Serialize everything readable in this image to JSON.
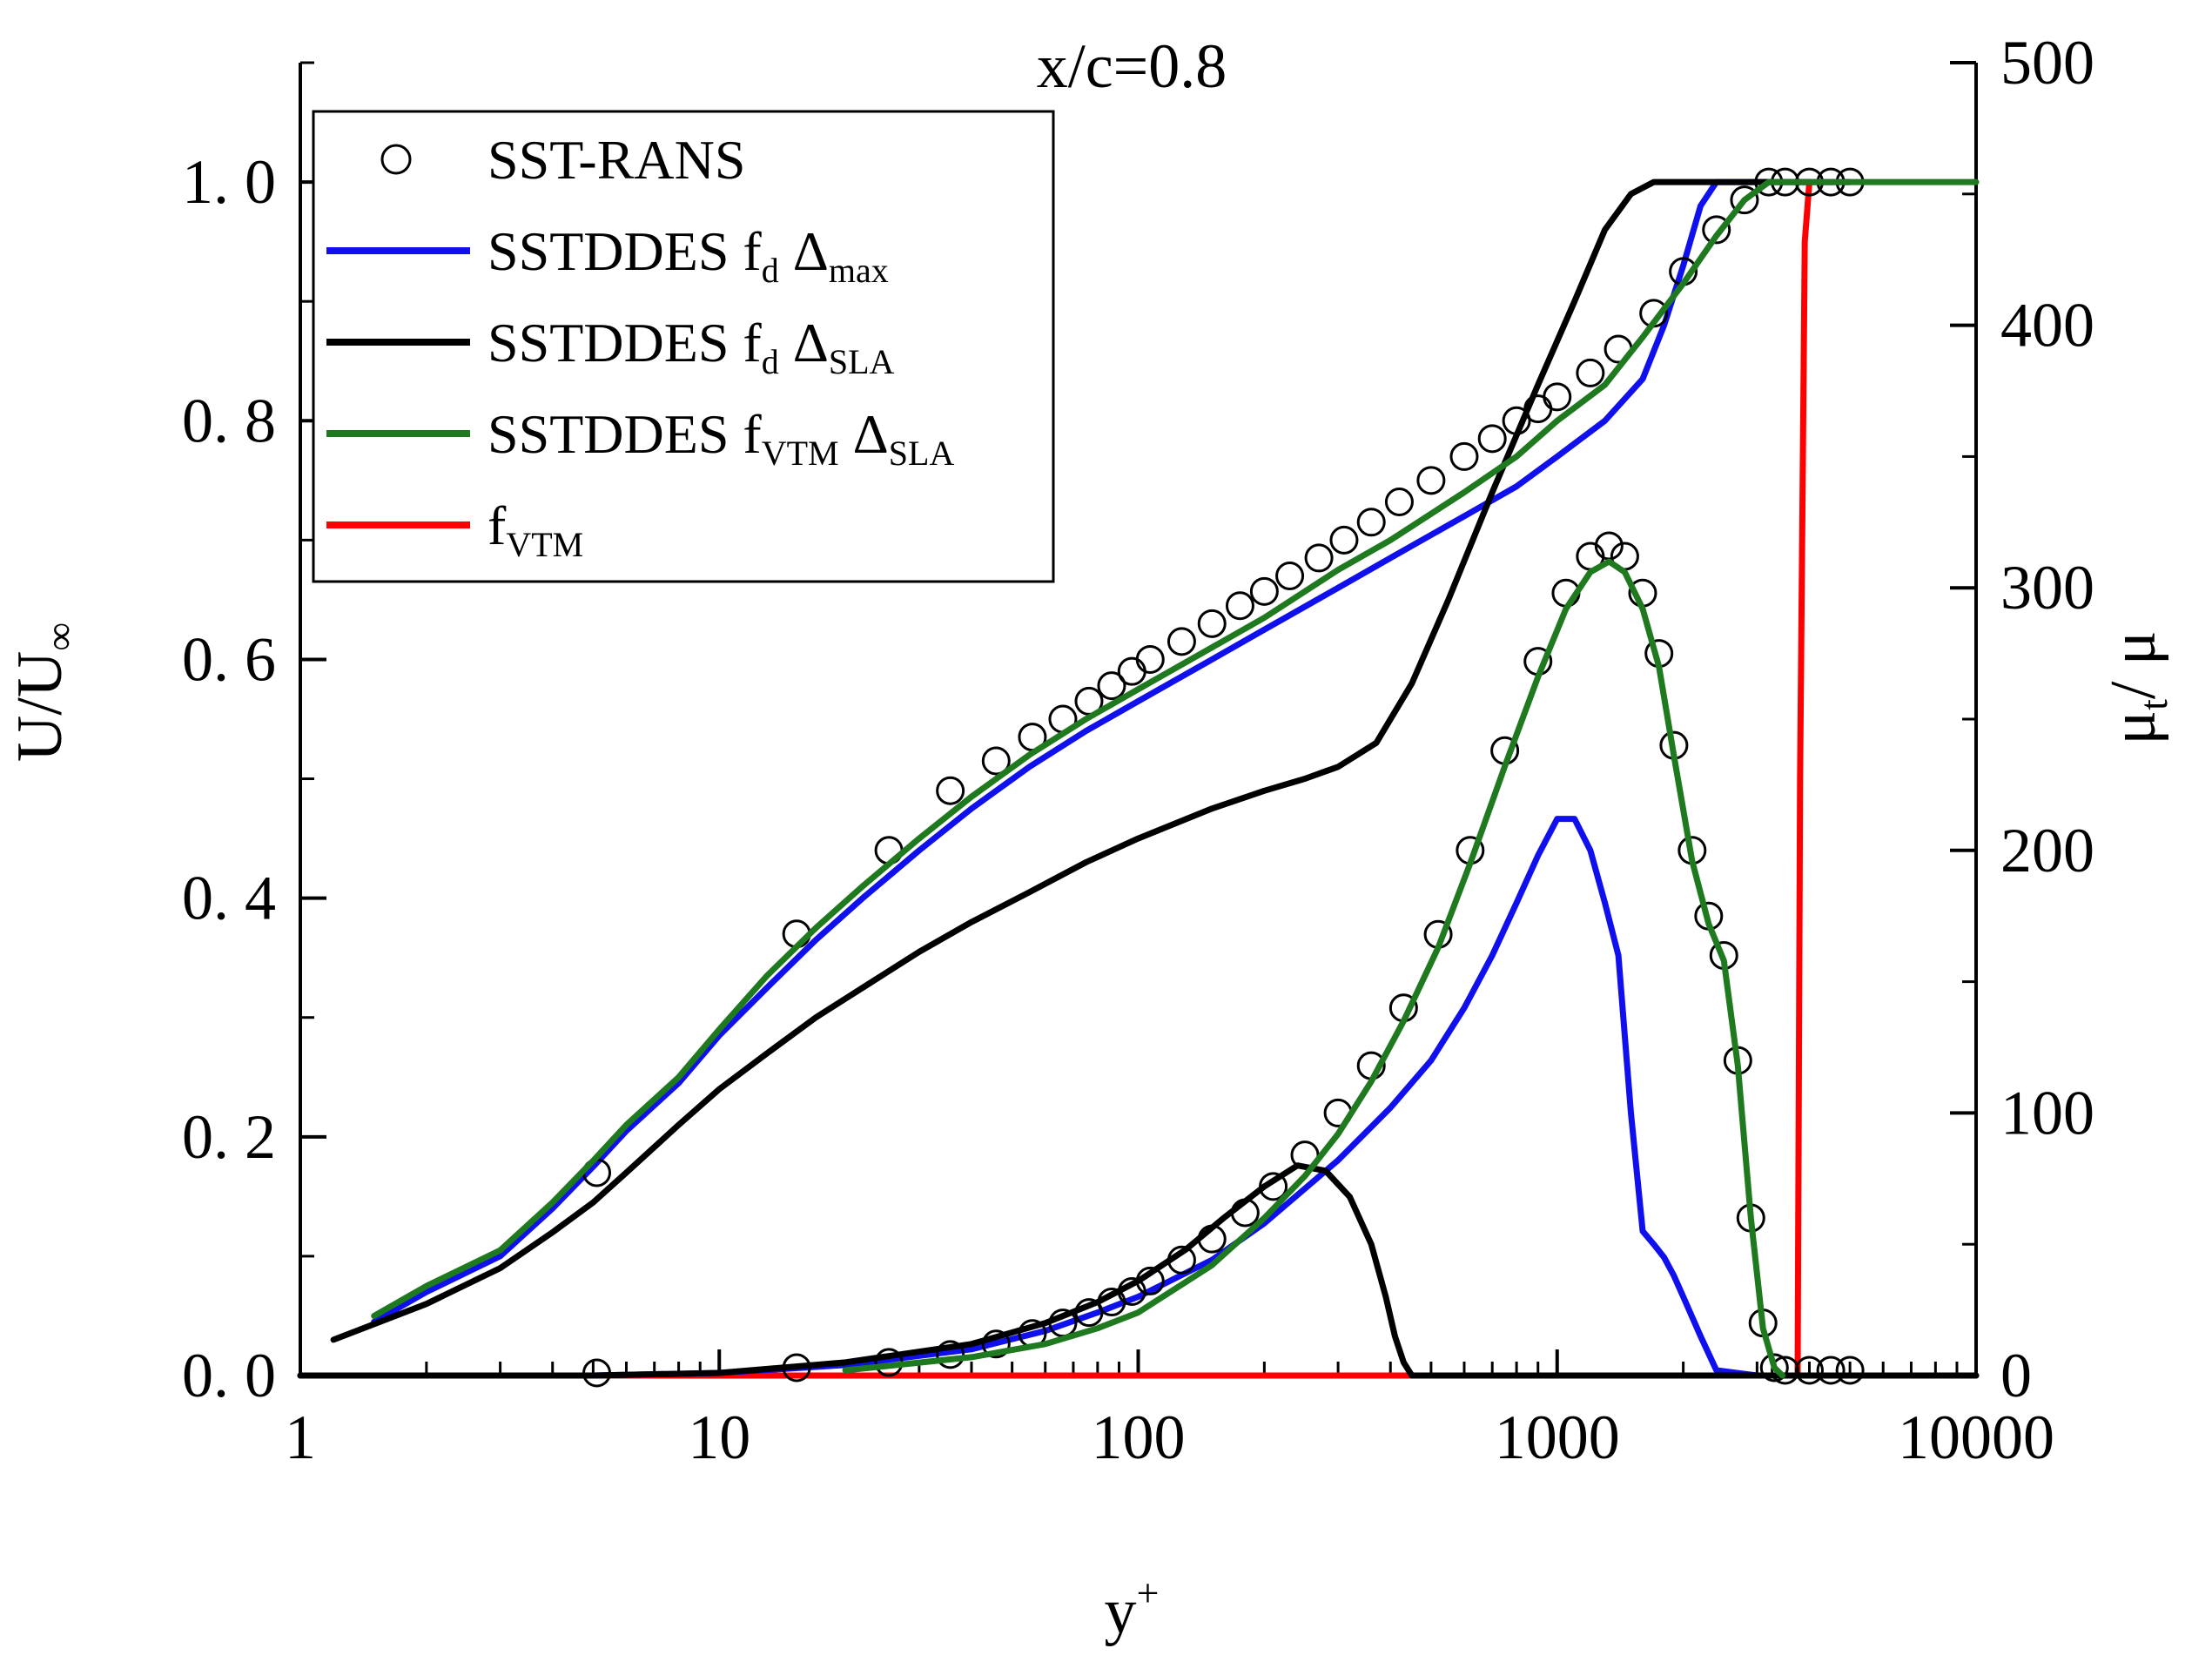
{
  "chart_data": {
    "type": "line",
    "title": "x/c=0.8",
    "xlabel": "y",
    "xlabel_sup": "+",
    "ylabel_left": "U/U",
    "ylabel_left_sub": "∞",
    "ylabel_right": "μ",
    "ylabel_right_sub": "t",
    "ylabel_right_suffix": "/ μ",
    "x_scale": "log",
    "xlim": [
      1,
      10000
    ],
    "ylim_left": [
      0,
      1.1
    ],
    "ylim_right": [
      0,
      500
    ],
    "x_ticks": [
      {
        "value": 1,
        "label": "1"
      },
      {
        "value": 10,
        "label": "10"
      },
      {
        "value": 100,
        "label": "100"
      },
      {
        "value": 1000,
        "label": "1000"
      },
      {
        "value": 10000,
        "label": "10000"
      }
    ],
    "y_left_ticks": [
      {
        "value": 0,
        "label": "0. 0"
      },
      {
        "value": 0.2,
        "label": "0. 2"
      },
      {
        "value": 0.4,
        "label": "0. 4"
      },
      {
        "value": 0.6,
        "label": "0. 6"
      },
      {
        "value": 0.8,
        "label": "0. 8"
      },
      {
        "value": 1.0,
        "label": "1. 0"
      }
    ],
    "y_right_ticks": [
      {
        "value": 0,
        "label": "0"
      },
      {
        "value": 100,
        "label": "100"
      },
      {
        "value": 200,
        "label": "200"
      },
      {
        "value": 300,
        "label": "300"
      },
      {
        "value": 400,
        "label": "400"
      },
      {
        "value": 500,
        "label": "500"
      }
    ],
    "legend": {
      "placement": "top-left",
      "entries": [
        {
          "series": "sst_rans",
          "parts": [
            {
              "t": "SST-RANS"
            }
          ]
        },
        {
          "series": "fd_max",
          "parts": [
            {
              "t": "SSTDDES f"
            },
            {
              "t": "d",
              "sub": true
            },
            {
              "t": " Δ"
            },
            {
              "t": "max",
              "sub": true
            }
          ]
        },
        {
          "series": "fd_sla",
          "parts": [
            {
              "t": "SSTDDES f"
            },
            {
              "t": "d",
              "sub": true
            },
            {
              "t": " Δ"
            },
            {
              "t": "SLA",
              "sub": true
            }
          ]
        },
        {
          "series": "fvtm_sla",
          "parts": [
            {
              "t": "SSTDDES f"
            },
            {
              "t": "VTM",
              "sub": true
            },
            {
              "t": " Δ"
            },
            {
              "t": "SLA",
              "sub": true
            }
          ]
        },
        {
          "series": "fvtm",
          "parts": [
            {
              "t": "f"
            },
            {
              "t": "VTM",
              "sub": true
            }
          ]
        }
      ]
    },
    "series": [
      {
        "id": "sst_rans",
        "name": "SST-RANS",
        "style": "markers",
        "color": "#000000",
        "velocity": {
          "axis": "left",
          "x": [
            5.1,
            15.3,
            25.4,
            35.6,
            45.8,
            55.9,
            66.1,
            76.3,
            86.4,
            96.6,
            106.8,
            127,
            150,
            175,
            200,
            230,
            270,
            310,
            360,
            420,
            500,
            600,
            700,
            800,
            900,
            1000,
            1200,
            1400,
            1700,
            2000,
            2400,
            2800,
            3200,
            3500,
            4000,
            4500,
            5000
          ],
          "y": [
            0.17,
            0.37,
            0.44,
            0.49,
            0.515,
            0.535,
            0.55,
            0.565,
            0.578,
            0.59,
            0.6,
            0.615,
            0.63,
            0.645,
            0.657,
            0.67,
            0.685,
            0.7,
            0.715,
            0.732,
            0.75,
            0.77,
            0.785,
            0.8,
            0.81,
            0.82,
            0.84,
            0.86,
            0.89,
            0.925,
            0.96,
            0.985,
            1.0,
            1.0,
            1.0,
            1.0,
            1.0
          ]
        },
        "viscosity": {
          "axis": "right",
          "x": [
            5.1,
            15.3,
            25.4,
            35.6,
            45.8,
            55.9,
            66.1,
            76.3,
            86.4,
            96.6,
            106.8,
            127,
            150,
            180,
            210,
            250,
            300,
            360,
            430,
            520,
            620,
            750,
            900,
            1050,
            1200,
            1330,
            1450,
            1600,
            1750,
            1900,
            2100,
            2300,
            2500,
            2700,
            2900,
            3100,
            3300,
            3500,
            4000,
            4500,
            5000
          ],
          "y": [
            1,
            3,
            5,
            8,
            12,
            16,
            20,
            24,
            28,
            32,
            36,
            44,
            52,
            62,
            72,
            84,
            100,
            118,
            140,
            168,
            200,
            238,
            272,
            298,
            312,
            316,
            312,
            298,
            275,
            240,
            200,
            175,
            160,
            120,
            60,
            20,
            3,
            2,
            2,
            2,
            2
          ]
        }
      },
      {
        "id": "fd_max",
        "name": "SSTDDES fd Δmax",
        "style": "line",
        "color": "#1010ee",
        "velocity": {
          "axis": "left",
          "x": [
            1.5,
            2,
            3,
            4,
            5,
            6,
            8,
            10,
            13,
            17,
            22,
            30,
            40,
            55,
            75,
            100,
            150,
            200,
            300,
            400,
            600,
            800,
            1000,
            1300,
            1600,
            1800,
            2000,
            2200,
            2400,
            2600,
            3000,
            4000,
            5000
          ],
          "y": [
            0.045,
            0.07,
            0.1,
            0.14,
            0.175,
            0.205,
            0.245,
            0.285,
            0.325,
            0.365,
            0.4,
            0.44,
            0.475,
            0.51,
            0.54,
            0.565,
            0.6,
            0.625,
            0.66,
            0.685,
            0.72,
            0.745,
            0.77,
            0.8,
            0.835,
            0.88,
            0.93,
            0.98,
            1.0,
            1.0,
            1.0,
            1.0,
            1.0
          ]
        },
        "viscosity": {
          "axis": "right",
          "x": [
            1,
            5,
            10,
            20,
            40,
            60,
            80,
            100,
            150,
            200,
            300,
            400,
            500,
            600,
            700,
            800,
            900,
            1000,
            1100,
            1200,
            1300,
            1400,
            1500,
            1600,
            1700,
            1800,
            1900,
            2000,
            2200,
            2400,
            3000,
            10000
          ],
          "y": [
            0,
            0,
            1,
            4,
            10,
            17,
            24,
            30,
            44,
            58,
            82,
            102,
            120,
            140,
            160,
            180,
            198,
            212,
            212,
            200,
            180,
            160,
            100,
            55,
            50,
            45,
            38,
            30,
            15,
            2,
            0,
            0
          ]
        }
      },
      {
        "id": "fd_sla",
        "name": "SSTDDES fd ΔSLA",
        "style": "line",
        "color": "#000000",
        "velocity": {
          "axis": "left",
          "x": [
            1.2,
            2,
            3,
            4,
            5,
            6,
            8,
            10,
            13,
            17,
            22,
            30,
            40,
            55,
            75,
            100,
            150,
            200,
            250,
            300,
            370,
            450,
            550,
            700,
            900,
            1100,
            1300,
            1500,
            1700,
            2000,
            2500,
            3000,
            4000
          ],
          "y": [
            0.03,
            0.06,
            0.09,
            0.12,
            0.145,
            0.17,
            0.21,
            0.24,
            0.27,
            0.3,
            0.325,
            0.355,
            0.38,
            0.405,
            0.43,
            0.45,
            0.475,
            0.49,
            0.5,
            0.51,
            0.53,
            0.58,
            0.65,
            0.74,
            0.83,
            0.9,
            0.96,
            0.99,
            1.0,
            1.0,
            1.0,
            1.0,
            1.0
          ]
        },
        "viscosity": {
          "axis": "right",
          "x": [
            1,
            5,
            10,
            20,
            40,
            60,
            80,
            100,
            130,
            160,
            200,
            240,
            280,
            320,
            360,
            390,
            410,
            430,
            450,
            10000
          ],
          "y": [
            0,
            0,
            1,
            5,
            12,
            20,
            28,
            36,
            48,
            60,
            72,
            80,
            78,
            68,
            50,
            30,
            15,
            5,
            0,
            0
          ]
        }
      },
      {
        "id": "fvtm_sla",
        "name": "SSTDDES fVTM ΔSLA",
        "style": "line",
        "color": "#1f7a1f",
        "velocity": {
          "axis": "left",
          "x": [
            1.5,
            2,
            3,
            4,
            5,
            6,
            8,
            10,
            13,
            17,
            22,
            30,
            40,
            55,
            75,
            100,
            150,
            200,
            300,
            400,
            600,
            800,
            1000,
            1300,
            1600,
            2000,
            2400,
            2800,
            3200,
            3600,
            5000,
            10000
          ],
          "y": [
            0.05,
            0.075,
            0.105,
            0.145,
            0.18,
            0.21,
            0.25,
            0.29,
            0.335,
            0.375,
            0.41,
            0.45,
            0.485,
            0.52,
            0.55,
            0.575,
            0.61,
            0.635,
            0.675,
            0.7,
            0.74,
            0.77,
            0.8,
            0.83,
            0.87,
            0.915,
            0.955,
            0.985,
            1.0,
            1.0,
            1.0,
            1.0
          ]
        },
        "viscosity": {
          "axis": "right",
          "x": [
            20,
            40,
            60,
            80,
            100,
            150,
            200,
            250,
            300,
            360,
            430,
            520,
            620,
            750,
            900,
            1050,
            1200,
            1330,
            1450,
            1600,
            1750,
            1900,
            2100,
            2300,
            2500,
            2700,
            2900,
            3100,
            3300,
            3450
          ],
          "y": [
            2,
            7,
            12,
            18,
            24,
            42,
            60,
            76,
            92,
            112,
            135,
            163,
            195,
            232,
            266,
            292,
            306,
            310,
            306,
            292,
            270,
            236,
            196,
            172,
            158,
            118,
            60,
            18,
            3,
            0
          ]
        }
      },
      {
        "id": "fvtm",
        "name": "fVTM",
        "style": "line",
        "color": "#ff0000",
        "velocity": {
          "axis": "left",
          "x": [
            1,
            400,
            1000,
            3500,
            3750,
            3800,
            3900,
            4000,
            5000
          ],
          "y": [
            0,
            0,
            0,
            0,
            0,
            0.5,
            0.95,
            1.0,
            1.0
          ]
        }
      }
    ]
  }
}
